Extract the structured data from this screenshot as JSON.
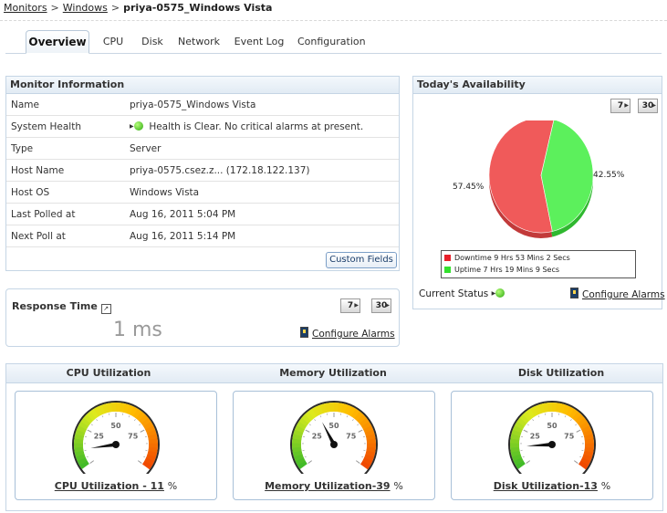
{
  "breadcrumb": {
    "items": [
      "Monitors",
      "Windows"
    ],
    "current": "priya-0575_Windows Vista"
  },
  "tabs": [
    "Overview",
    "CPU",
    "Disk",
    "Network",
    "Event Log",
    "Configuration"
  ],
  "monitor_info": {
    "title": "Monitor Information",
    "rows": [
      {
        "label": "Name",
        "value": "priya-0575_Windows Vista"
      },
      {
        "label": "System Health",
        "value": "Health is Clear. No critical alarms at present."
      },
      {
        "label": "Type",
        "value": "Server"
      },
      {
        "label": "Host Name",
        "value": "priya-0575.csez.z... (172.18.122.137)"
      },
      {
        "label": "Host OS",
        "value": "Windows Vista"
      },
      {
        "label": "Last Polled at",
        "value": "Aug 16, 2011 5:04 PM"
      },
      {
        "label": "Next Poll at",
        "value": "Aug 16, 2011 5:14 PM"
      }
    ],
    "custom_fields_button": "Custom Fields"
  },
  "response_time": {
    "title": "Response Time",
    "value": "1 ms",
    "btn_7": "7",
    "btn_30": "30",
    "configure_alarms": "Configure Alarms"
  },
  "availability": {
    "title": "Today's Availability",
    "btn_7": "7",
    "btn_30": "30",
    "downtime_pct": "57.45%",
    "uptime_pct": "42.55%",
    "legend_downtime": "Downtime 9 Hrs 53 Mins 2 Secs",
    "legend_uptime": "Uptime 7 Hrs 19 Mins 9 Secs",
    "current_status": "Current Status",
    "configure_alarms": "Configure Alarms",
    "colors": {
      "downtime": "#f05a5a",
      "uptime": "#5cf05c"
    }
  },
  "chart_data": {
    "type": "pie",
    "categories": [
      "Downtime",
      "Uptime"
    ],
    "values": [
      57.45,
      42.55
    ]
  },
  "utilization": {
    "gauges": [
      {
        "title": "CPU Utilization",
        "link": "CPU Utilization - 11",
        "unit": "%",
        "value": 11
      },
      {
        "title": "Memory Utilization",
        "link": "Memory Utilization-39",
        "unit": "%",
        "value": 39
      },
      {
        "title": "Disk Utilization",
        "link": "Disk Utilization-13",
        "unit": "%",
        "value": 13
      }
    ],
    "scale_labels": [
      "25",
      "50",
      "75"
    ]
  }
}
